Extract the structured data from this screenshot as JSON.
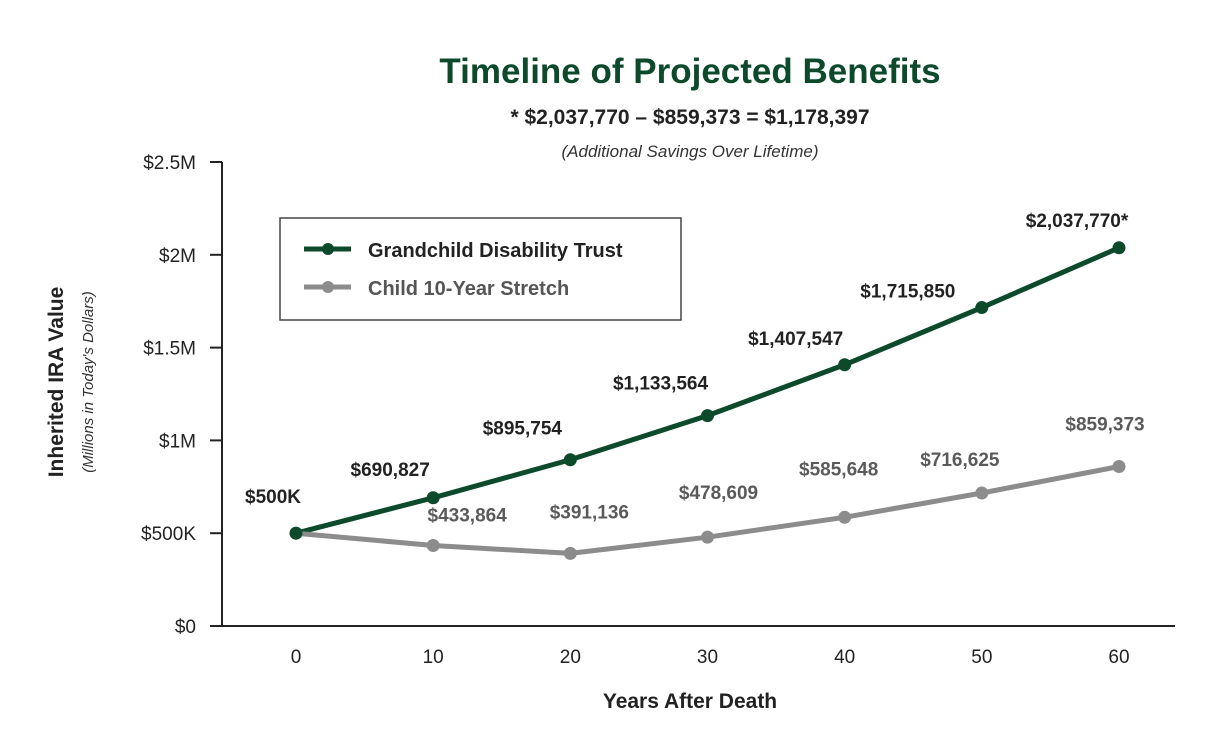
{
  "chart_data": {
    "type": "line",
    "title": "Timeline of Projected Benefits",
    "subtitle": "* $2,037,770 – $859,373 = $1,178,397",
    "note": "(Additional Savings Over Lifetime)",
    "xlabel": "Years After Death",
    "ylabel": "Inherited IRA Value",
    "ylabel_sub": "(Millions in Today's Dollars)",
    "x": [
      0,
      10,
      20,
      30,
      40,
      50,
      60
    ],
    "x_ticks": [
      "0",
      "10",
      "20",
      "30",
      "40",
      "50",
      "60"
    ],
    "ylim": [
      0,
      2500000
    ],
    "y_ticks": [
      {
        "value": 0,
        "label": "$0"
      },
      {
        "value": 500000,
        "label": "$500K"
      },
      {
        "value": 1000000,
        "label": "$1M"
      },
      {
        "value": 1500000,
        "label": "$1.5M"
      },
      {
        "value": 2000000,
        "label": "$2M"
      },
      {
        "value": 2500000,
        "label": "$2.5M"
      }
    ],
    "grid": false,
    "legend_position": "top-left",
    "series": [
      {
        "name": "Grandchild Disability Trust",
        "color": "#0d4a2c",
        "label_color": "#222222",
        "values": [
          500000,
          690827,
          895754,
          1133564,
          1407547,
          1715850,
          2037770
        ],
        "labels": [
          "$500K",
          "$690,827",
          "$895,754",
          "$1,133,564",
          "$1,407,547",
          "$1,715,850",
          "$2,037,770*"
        ]
      },
      {
        "name": "Child 10-Year Stretch",
        "color": "#8c8c8c",
        "label_color": "#5a5a5a",
        "values": [
          500000,
          433864,
          391136,
          478609,
          585648,
          716625,
          859373
        ],
        "labels": [
          "",
          "$433,864",
          "$391,136",
          "$478,609",
          "$585,648",
          "$716,625",
          "$859,373"
        ]
      }
    ]
  }
}
